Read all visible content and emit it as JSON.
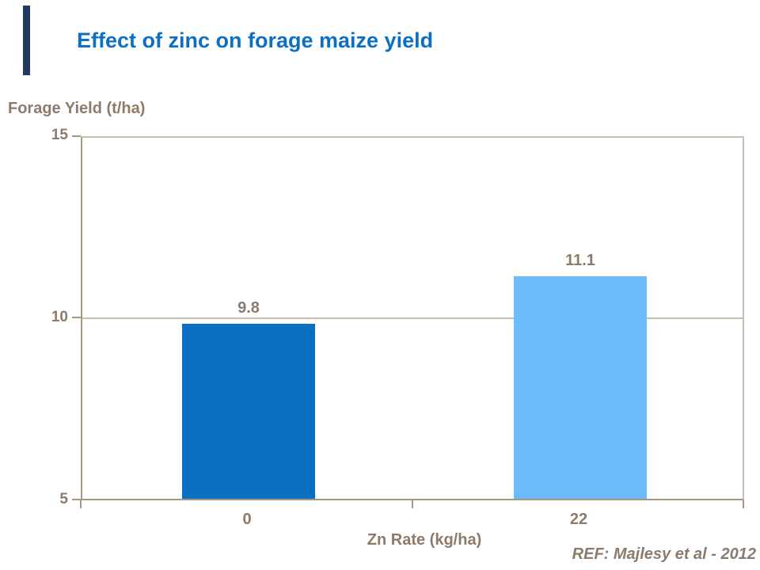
{
  "page": {
    "title": "Effect of zinc on forage maize yield"
  },
  "chart_data": {
    "type": "bar",
    "title": "Effect of zinc on forage maize yield",
    "categories": [
      "0",
      "22"
    ],
    "values": [
      9.8,
      11.1
    ],
    "value_labels": [
      "9.8",
      "11.1"
    ],
    "xlabel": "Zn Rate (kg/ha)",
    "ylabel": "Forage Yield (t/ha)",
    "ylim": [
      5,
      15
    ],
    "yticks": [
      "15",
      "10",
      "5"
    ],
    "gridlines_at": [
      10
    ],
    "legend_position": "none",
    "bar_colors": [
      "#0a6fc0",
      "#6cbcfb"
    ]
  },
  "footer": {
    "reference": "REF: Majlesy et al  - 2012"
  },
  "colors": {
    "title_blue": "#0b70c4",
    "text_brown": "#8c7b6b",
    "axis": "#a3977f",
    "grid": "#c8bfb0",
    "bar_dark_blue": "#0a6fc0",
    "bar_light_blue": "#6cbcfb",
    "accent_navy": "#1f3864"
  }
}
